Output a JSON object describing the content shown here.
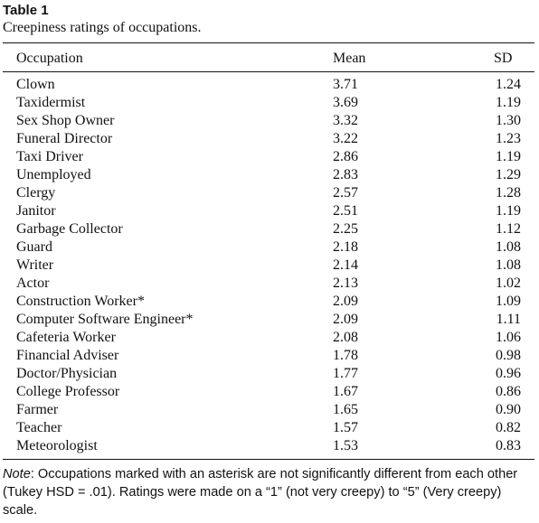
{
  "table": {
    "label": "Table 1",
    "caption": "Creepiness ratings of occupations.",
    "headers": {
      "occupation": "Occupation",
      "mean": "Mean",
      "sd": "SD"
    },
    "rows": [
      {
        "occupation": "Clown",
        "mean": "3.71",
        "sd": "1.24"
      },
      {
        "occupation": "Taxidermist",
        "mean": "3.69",
        "sd": "1.19"
      },
      {
        "occupation": "Sex Shop Owner",
        "mean": "3.32",
        "sd": "1.30"
      },
      {
        "occupation": "Funeral Director",
        "mean": "3.22",
        "sd": "1.23"
      },
      {
        "occupation": "Taxi Driver",
        "mean": "2.86",
        "sd": "1.19"
      },
      {
        "occupation": "Unemployed",
        "mean": "2.83",
        "sd": "1.29"
      },
      {
        "occupation": "Clergy",
        "mean": "2.57",
        "sd": "1.28"
      },
      {
        "occupation": "Janitor",
        "mean": "2.51",
        "sd": "1.19"
      },
      {
        "occupation": "Garbage Collector",
        "mean": "2.25",
        "sd": "1.12"
      },
      {
        "occupation": "Guard",
        "mean": "2.18",
        "sd": "1.08"
      },
      {
        "occupation": "Writer",
        "mean": "2.14",
        "sd": "1.08"
      },
      {
        "occupation": "Actor",
        "mean": "2.13",
        "sd": "1.02"
      },
      {
        "occupation": "Construction Worker*",
        "mean": "2.09",
        "sd": "1.09"
      },
      {
        "occupation": "Computer Software Engineer*",
        "mean": "2.09",
        "sd": "1.11"
      },
      {
        "occupation": "Cafeteria Worker",
        "mean": "2.08",
        "sd": "1.06"
      },
      {
        "occupation": "Financial Adviser",
        "mean": "1.78",
        "sd": "0.98"
      },
      {
        "occupation": "Doctor/Physician",
        "mean": "1.77",
        "sd": "0.96"
      },
      {
        "occupation": "College Professor",
        "mean": "1.67",
        "sd": "0.86"
      },
      {
        "occupation": "Farmer",
        "mean": "1.65",
        "sd": "0.90"
      },
      {
        "occupation": "Teacher",
        "mean": "1.57",
        "sd": "0.82"
      },
      {
        "occupation": "Meteorologist",
        "mean": "1.53",
        "sd": "0.83"
      }
    ],
    "note_label": "Note",
    "note_text": ": Occupations marked with an asterisk are not significantly different from each other (Tukey HSD = .01). Ratings were made on a “1” (not very creepy) to “5” (Very creepy) scale."
  }
}
